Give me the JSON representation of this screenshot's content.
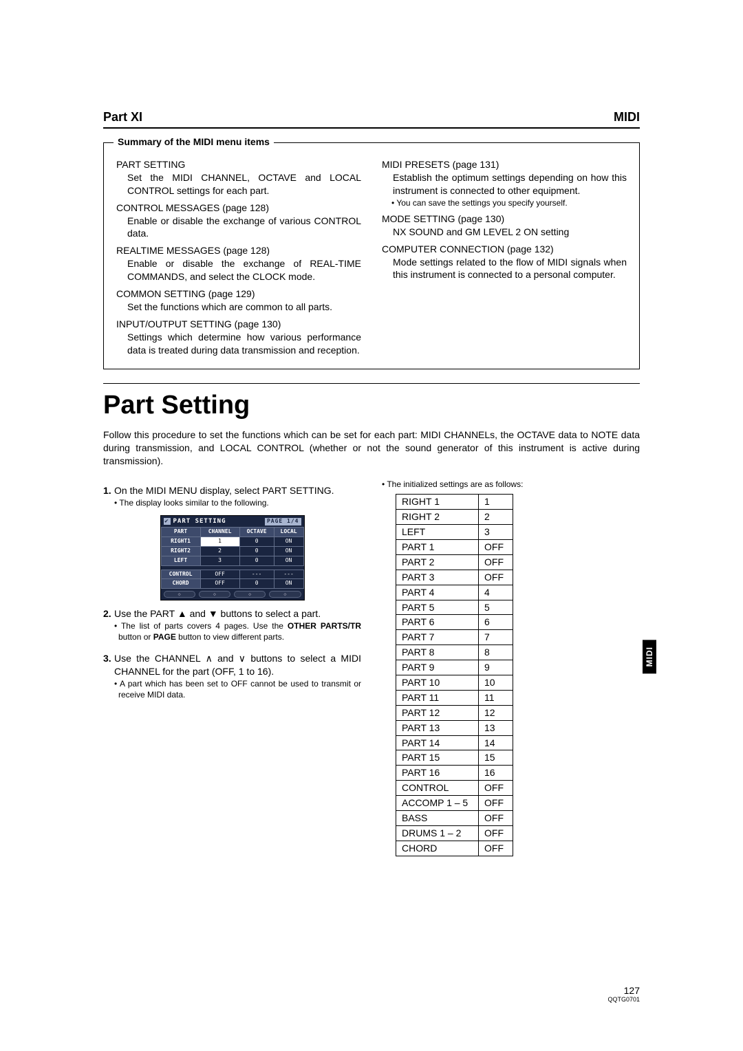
{
  "header": {
    "left": "Part XI",
    "right": "MIDI"
  },
  "summary": {
    "title": "Summary of the MIDI menu items",
    "left": [
      {
        "name": "PART SETTING",
        "desc": "Set the MIDI CHANNEL, OCTAVE and LOCAL CONTROL settings for each part."
      },
      {
        "name": "CONTROL MESSAGES (page 128)",
        "desc": "Enable or disable the exchange of various CONTROL data."
      },
      {
        "name": "REALTIME MESSAGES (page 128)",
        "desc": "Enable or disable the exchange of REAL-TIME COMMANDS, and select the CLOCK mode."
      },
      {
        "name": "COMMON SETTING (page 129)",
        "desc": "Set the functions which are common to all parts."
      },
      {
        "name": "INPUT/OUTPUT SETTING (page 130)",
        "desc": "Settings which determine how various performance data is treated during data transmission and reception."
      }
    ],
    "right": [
      {
        "name": "MIDI PRESETS (page 131)",
        "desc": "Establish the optimum settings depending on how this instrument is connected to other equipment.",
        "note": "• You can save the settings you specify yourself."
      },
      {
        "name": "MODE SETTING (page 130)",
        "desc": "NX SOUND and GM LEVEL 2 ON setting"
      },
      {
        "name": "COMPUTER CONNECTION (page 132)",
        "desc": "Mode settings related to the flow of MIDI signals when this instrument is connected to a personal computer."
      }
    ]
  },
  "section": {
    "title": "Part Setting",
    "intro": "Follow this procedure to set the functions which can be set for each part: MIDI CHANNELs, the OCTAVE data to NOTE data during transmission, and LOCAL CONTROL (whether or not the sound generator of this instrument is active during transmission)."
  },
  "steps": {
    "s1": {
      "num": "1.",
      "text": "On the MIDI MENU display, select PART SETTING.",
      "note": "• The display looks similar to the following."
    },
    "s2": {
      "num": "2.",
      "text": "Use the PART ▲ and ▼ buttons to select a part.",
      "note_pre": "• The list of parts covers 4 pages. Use the ",
      "note_bold": "OTHER PARTS/TR",
      "note_mid": " button or ",
      "note_bold2": "PAGE",
      "note_post": " button to view different parts."
    },
    "s3": {
      "num": "3.",
      "text": "Use the CHANNEL ∧ and ∨ buttons to select a MIDI CHANNEL for the part (OFF, 1 to 16).",
      "note": "• A part which has been set to OFF cannot be used to transmit or receive MIDI data."
    }
  },
  "lcd": {
    "title": "PART SETTING",
    "page": "PAGE 1/4",
    "headers": [
      "PART",
      "CHANNEL",
      "OCTAVE",
      "LOCAL"
    ],
    "rows": [
      [
        "RIGHT1",
        "1",
        "0",
        "ON"
      ],
      [
        "RIGHT2",
        "2",
        "0",
        "ON"
      ],
      [
        "LEFT",
        "3",
        "0",
        "ON"
      ],
      [
        "CONTROL",
        "OFF",
        "---",
        "---"
      ],
      [
        "CHORD",
        "OFF",
        "0",
        "ON"
      ]
    ]
  },
  "initialized": {
    "note": "• The initialized settings are as follows:",
    "rows": [
      [
        "RIGHT 1",
        "1"
      ],
      [
        "RIGHT 2",
        "2"
      ],
      [
        "LEFT",
        "3"
      ],
      [
        "PART 1",
        "OFF"
      ],
      [
        "PART 2",
        "OFF"
      ],
      [
        "PART 3",
        "OFF"
      ],
      [
        "PART 4",
        "4"
      ],
      [
        "PART 5",
        "5"
      ],
      [
        "PART 6",
        "6"
      ],
      [
        "PART 7",
        "7"
      ],
      [
        "PART 8",
        "8"
      ],
      [
        "PART 9",
        "9"
      ],
      [
        "PART 10",
        "10"
      ],
      [
        "PART 11",
        "11"
      ],
      [
        "PART 12",
        "12"
      ],
      [
        "PART 13",
        "13"
      ],
      [
        "PART 14",
        "14"
      ],
      [
        "PART 15",
        "15"
      ],
      [
        "PART 16",
        "16"
      ],
      [
        "CONTROL",
        "OFF"
      ],
      [
        "ACCOMP 1 – 5",
        "OFF"
      ],
      [
        "BASS",
        "OFF"
      ],
      [
        "DRUMS 1 – 2",
        "OFF"
      ],
      [
        "CHORD",
        "OFF"
      ]
    ]
  },
  "sideTab": "MIDI",
  "footer": {
    "page": "127",
    "code": "QQTG0701"
  }
}
